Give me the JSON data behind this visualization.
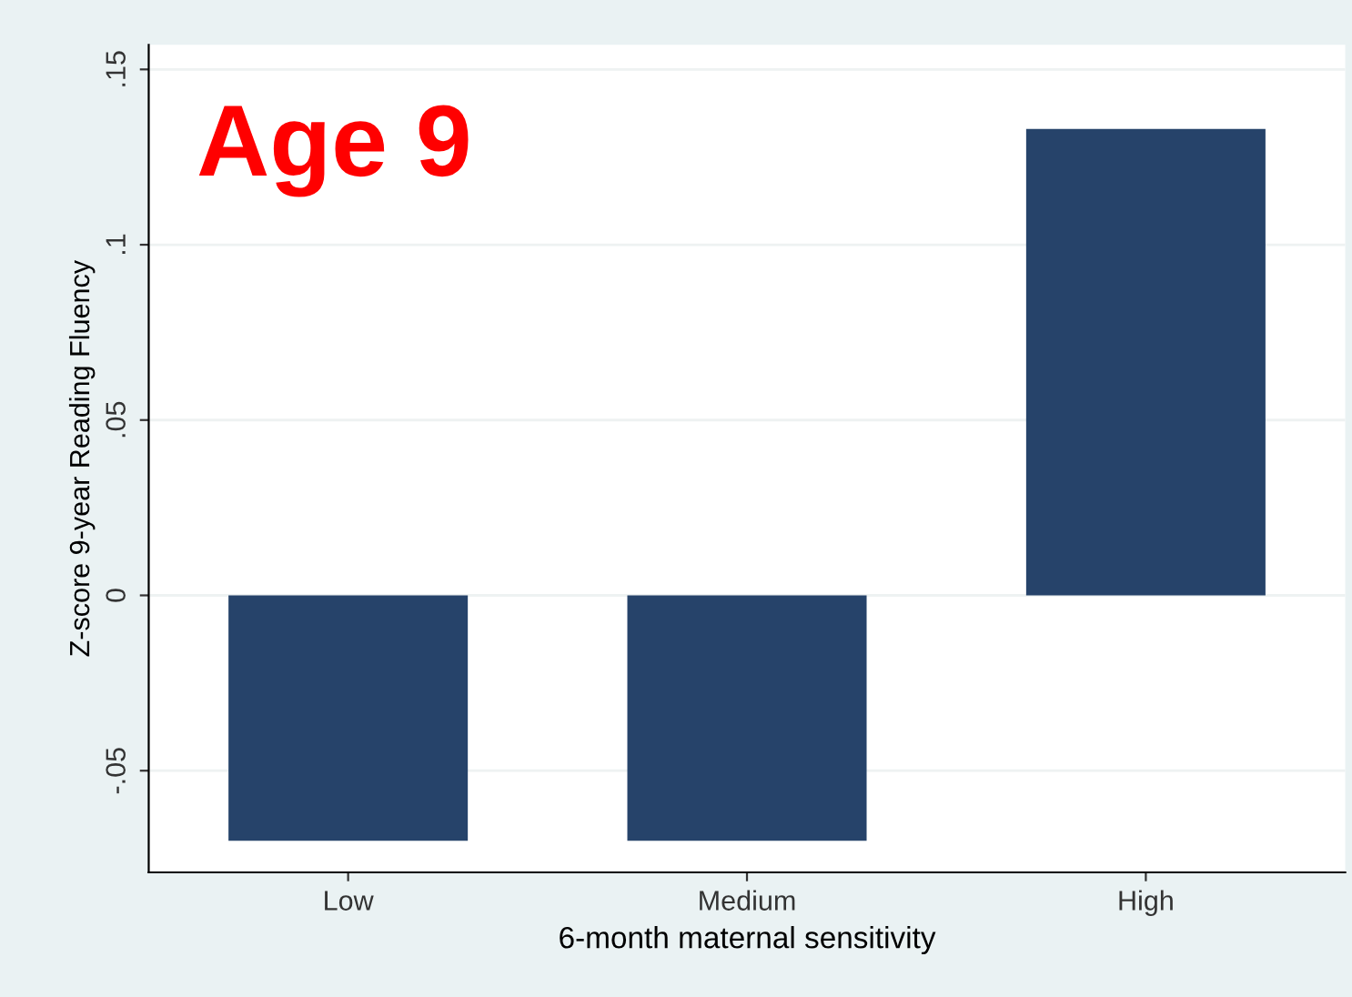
{
  "chart_data": {
    "type": "bar",
    "xlabel": "6-month maternal sensitivity",
    "ylabel": "Z-score 9-year Reading Fluency",
    "categories": [
      "Low",
      "Medium",
      "High"
    ],
    "values": [
      -0.07,
      -0.07,
      0.133
    ],
    "color": "#26436a",
    "ylim": [
      -0.079,
      0.157
    ],
    "yticks": [
      {
        "value": -0.05,
        "label": "-.05"
      },
      0,
      {
        "value": 0.05,
        "label": ".05"
      },
      {
        "value": 0.1,
        "label": ".1"
      },
      {
        "value": 0.15,
        "label": ".15"
      }
    ],
    "grid": "y",
    "annotations": [
      "Age 9"
    ]
  }
}
